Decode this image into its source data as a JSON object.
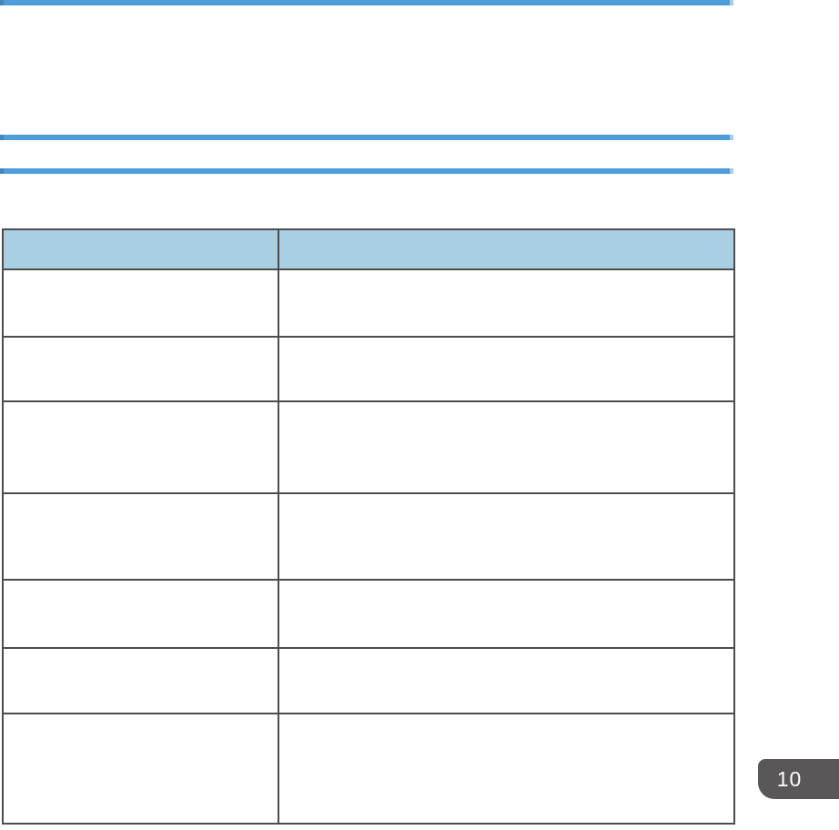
{
  "page": {
    "background": "#ffffff",
    "side_tab": {
      "label": "10"
    }
  },
  "colors": {
    "rule_blue": "#4f9cd8",
    "rule_cap_left": "#4387bd",
    "rule_cap_right": "#a7cde9",
    "table_header_fill": "#a9cfe3",
    "table_border": "#4c4c4c",
    "tab_background": "#595757",
    "tab_text": "#ffffff"
  },
  "table": {
    "columns": [
      "",
      ""
    ],
    "rows": [
      [
        "",
        ""
      ],
      [
        "",
        ""
      ],
      [
        "",
        ""
      ],
      [
        "",
        ""
      ],
      [
        "",
        ""
      ],
      [
        "",
        ""
      ],
      [
        "",
        ""
      ]
    ]
  }
}
